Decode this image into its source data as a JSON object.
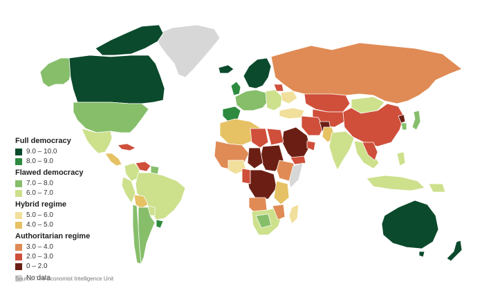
{
  "legend": {
    "groups": [
      {
        "title": "Full democracy",
        "items": [
          {
            "label": "9.0 – 10.0",
            "color": "#0b4a2c"
          },
          {
            "label": "8.0 – 9.0",
            "color": "#2d8a3e"
          }
        ]
      },
      {
        "title": "Flawed democracy",
        "items": [
          {
            "label": "7.0 – 8.0",
            "color": "#86be6a"
          },
          {
            "label": "6.0 – 7.0",
            "color": "#cde08c"
          }
        ]
      },
      {
        "title": "Hybrid regime",
        "items": [
          {
            "label": "5.0 – 6.0",
            "color": "#f1df9c"
          },
          {
            "label": "4.0 – 5.0",
            "color": "#e6c265"
          }
        ]
      },
      {
        "title": "Authoritarian regime",
        "items": [
          {
            "label": "3.0 – 4.0",
            "color": "#e08b55"
          },
          {
            "label": "2.0 – 3.0",
            "color": "#cf4f3b"
          },
          {
            "label": "0 – 2.0",
            "color": "#6b1f14"
          }
        ]
      }
    ],
    "no_data": {
      "label": "No data",
      "color": "#d7d7d7"
    }
  },
  "source": "Source: The Economist Intelligence Unit"
}
